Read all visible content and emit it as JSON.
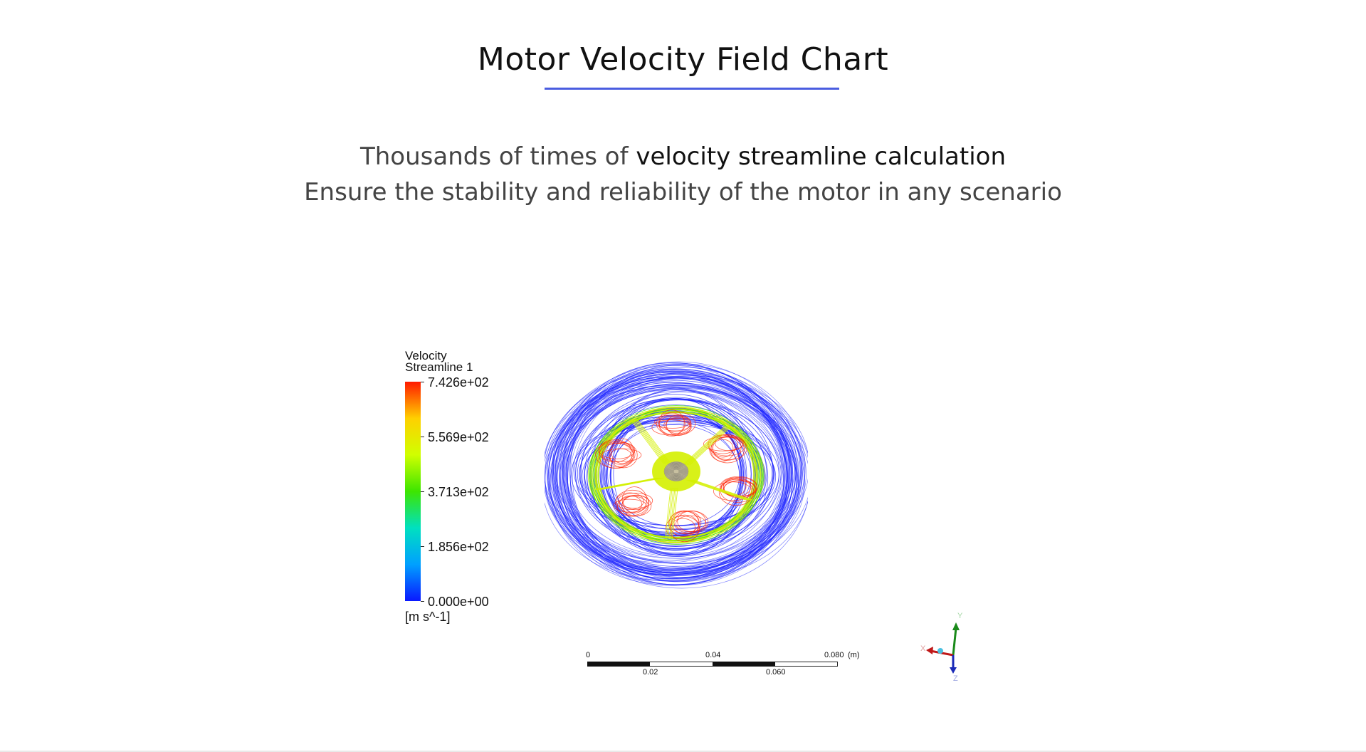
{
  "header": {
    "title": "Motor Velocity Field Chart"
  },
  "subtitle": {
    "line1_prefix": "Thousands of times of ",
    "line1_highlight": "velocity streamline calculation",
    "line2": "Ensure the stability and reliability of the motor in any scenario"
  },
  "legend": {
    "title_line1": "Velocity",
    "title_line2": "Streamline 1",
    "values": [
      "7.426e+02",
      "5.569e+02",
      "3.713e+02",
      "1.856e+02",
      "0.000e+00"
    ],
    "unit": "[m s^-1]",
    "gradient_colors": [
      "#ff1a00",
      "#ffd000",
      "#d0ff00",
      "#3de500",
      "#00e0c0",
      "#00a0ff",
      "#0a18ff"
    ]
  },
  "scale_bar": {
    "top_labels": [
      "0",
      "0.04",
      "0.080"
    ],
    "bottom_labels": [
      "0.02",
      "0.060"
    ],
    "unit": "(m)"
  },
  "axes_triad": {
    "x": "X",
    "y": "Y",
    "z": "Z"
  },
  "colors": {
    "accent": "#4a5de0",
    "streamline_low": "#1a20ff",
    "streamline_mid": "#d4f000",
    "streamline_high": "#ff2000"
  }
}
